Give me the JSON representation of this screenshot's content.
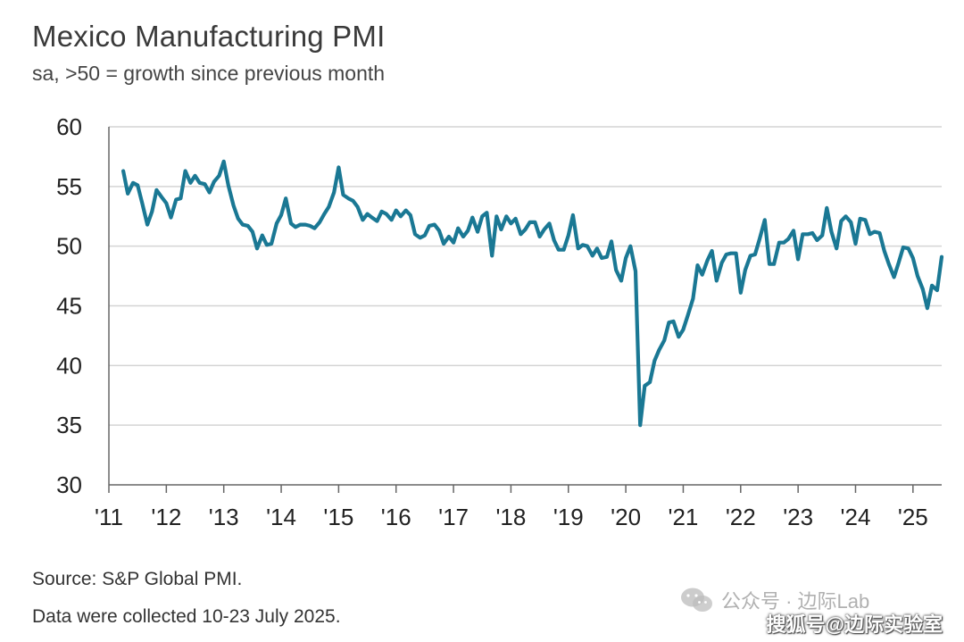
{
  "chart_data": {
    "type": "line",
    "title": "Mexico Manufacturing PMI",
    "subtitle": "sa, >50 = growth since previous month",
    "xlabel": "",
    "ylabel": "",
    "ylim": [
      30,
      60
    ],
    "yticks": [
      60,
      55,
      50,
      45,
      40,
      35,
      30
    ],
    "xticks": [
      "'11",
      "'12",
      "'13",
      "'14",
      "'15",
      "'16",
      "'17",
      "'18",
      "'19",
      "'20",
      "'21",
      "'22",
      "'23",
      "'24",
      "'25"
    ],
    "grid": "horizontal",
    "legend": "none",
    "series_color": "#1a7894",
    "series": [
      {
        "values": [
          [
            2011.25,
            56.3
          ],
          [
            2011.33,
            54.4
          ],
          [
            2011.42,
            55.3
          ],
          [
            2011.5,
            55.1
          ],
          [
            2011.58,
            53.6
          ],
          [
            2011.67,
            51.8
          ],
          [
            2011.75,
            52.9
          ],
          [
            2011.83,
            54.7
          ],
          [
            2011.92,
            54.1
          ],
          [
            2012.0,
            53.6
          ],
          [
            2012.08,
            52.4
          ],
          [
            2012.17,
            53.9
          ],
          [
            2012.25,
            54.0
          ],
          [
            2012.33,
            56.3
          ],
          [
            2012.42,
            55.3
          ],
          [
            2012.5,
            55.9
          ],
          [
            2012.58,
            55.3
          ],
          [
            2012.67,
            55.2
          ],
          [
            2012.75,
            54.5
          ],
          [
            2012.83,
            55.4
          ],
          [
            2012.92,
            55.9
          ],
          [
            2013.0,
            57.1
          ],
          [
            2013.08,
            55.1
          ],
          [
            2013.17,
            53.4
          ],
          [
            2013.25,
            52.3
          ],
          [
            2013.33,
            51.8
          ],
          [
            2013.42,
            51.7
          ],
          [
            2013.5,
            51.2
          ],
          [
            2013.58,
            49.8
          ],
          [
            2013.67,
            50.9
          ],
          [
            2013.75,
            50.1
          ],
          [
            2013.83,
            50.2
          ],
          [
            2013.92,
            51.9
          ],
          [
            2014.0,
            52.6
          ],
          [
            2014.08,
            54.0
          ],
          [
            2014.17,
            51.9
          ],
          [
            2014.25,
            51.6
          ],
          [
            2014.33,
            51.8
          ],
          [
            2014.42,
            51.8
          ],
          [
            2014.5,
            51.7
          ],
          [
            2014.58,
            51.5
          ],
          [
            2014.67,
            52.0
          ],
          [
            2014.75,
            52.7
          ],
          [
            2014.83,
            53.3
          ],
          [
            2014.92,
            54.5
          ],
          [
            2015.0,
            56.6
          ],
          [
            2015.08,
            54.3
          ],
          [
            2015.17,
            54.0
          ],
          [
            2015.25,
            53.8
          ],
          [
            2015.33,
            53.3
          ],
          [
            2015.42,
            52.2
          ],
          [
            2015.5,
            52.7
          ],
          [
            2015.58,
            52.4
          ],
          [
            2015.67,
            52.1
          ],
          [
            2015.75,
            52.9
          ],
          [
            2015.83,
            52.7
          ],
          [
            2015.92,
            52.2
          ],
          [
            2016.0,
            53.0
          ],
          [
            2016.08,
            52.5
          ],
          [
            2016.17,
            53.0
          ],
          [
            2016.25,
            52.6
          ],
          [
            2016.33,
            51.0
          ],
          [
            2016.42,
            50.7
          ],
          [
            2016.5,
            50.9
          ],
          [
            2016.58,
            51.7
          ],
          [
            2016.67,
            51.8
          ],
          [
            2016.75,
            51.3
          ],
          [
            2016.83,
            50.2
          ],
          [
            2016.92,
            50.8
          ],
          [
            2017.0,
            50.3
          ],
          [
            2017.08,
            51.5
          ],
          [
            2017.17,
            50.8
          ],
          [
            2017.25,
            51.3
          ],
          [
            2017.33,
            52.4
          ],
          [
            2017.42,
            51.2
          ],
          [
            2017.5,
            52.5
          ],
          [
            2017.58,
            52.8
          ],
          [
            2017.67,
            49.2
          ],
          [
            2017.75,
            52.5
          ],
          [
            2017.83,
            51.4
          ],
          [
            2017.92,
            52.5
          ],
          [
            2018.0,
            51.9
          ],
          [
            2018.08,
            52.3
          ],
          [
            2018.17,
            51.0
          ],
          [
            2018.25,
            51.4
          ],
          [
            2018.33,
            52.0
          ],
          [
            2018.42,
            52.0
          ],
          [
            2018.5,
            50.8
          ],
          [
            2018.58,
            51.4
          ],
          [
            2018.67,
            51.9
          ],
          [
            2018.75,
            50.5
          ],
          [
            2018.83,
            49.7
          ],
          [
            2018.92,
            49.7
          ],
          [
            2019.0,
            50.9
          ],
          [
            2019.08,
            52.6
          ],
          [
            2019.17,
            49.8
          ],
          [
            2019.25,
            50.1
          ],
          [
            2019.33,
            50.0
          ],
          [
            2019.42,
            49.2
          ],
          [
            2019.5,
            49.8
          ],
          [
            2019.58,
            49.0
          ],
          [
            2019.67,
            49.1
          ],
          [
            2019.75,
            50.4
          ],
          [
            2019.83,
            48.0
          ],
          [
            2019.92,
            47.1
          ],
          [
            2020.0,
            49.0
          ],
          [
            2020.08,
            50.0
          ],
          [
            2020.17,
            47.9
          ],
          [
            2020.25,
            35.0
          ],
          [
            2020.33,
            38.3
          ],
          [
            2020.42,
            38.6
          ],
          [
            2020.5,
            40.4
          ],
          [
            2020.58,
            41.3
          ],
          [
            2020.67,
            42.1
          ],
          [
            2020.75,
            43.6
          ],
          [
            2020.83,
            43.7
          ],
          [
            2020.92,
            42.4
          ],
          [
            2021.0,
            43.0
          ],
          [
            2021.08,
            44.2
          ],
          [
            2021.17,
            45.6
          ],
          [
            2021.25,
            48.4
          ],
          [
            2021.33,
            47.6
          ],
          [
            2021.42,
            48.8
          ],
          [
            2021.5,
            49.6
          ],
          [
            2021.58,
            47.1
          ],
          [
            2021.67,
            48.6
          ],
          [
            2021.75,
            49.3
          ],
          [
            2021.83,
            49.4
          ],
          [
            2021.92,
            49.4
          ],
          [
            2022.0,
            46.1
          ],
          [
            2022.08,
            48.0
          ],
          [
            2022.17,
            49.2
          ],
          [
            2022.25,
            49.3
          ],
          [
            2022.33,
            50.6
          ],
          [
            2022.42,
            52.2
          ],
          [
            2022.5,
            48.5
          ],
          [
            2022.58,
            48.5
          ],
          [
            2022.67,
            50.3
          ],
          [
            2022.75,
            50.3
          ],
          [
            2022.83,
            50.6
          ],
          [
            2022.92,
            51.3
          ],
          [
            2023.0,
            48.9
          ],
          [
            2023.08,
            51.0
          ],
          [
            2023.17,
            51.0
          ],
          [
            2023.25,
            51.1
          ],
          [
            2023.33,
            50.5
          ],
          [
            2023.42,
            50.9
          ],
          [
            2023.5,
            53.2
          ],
          [
            2023.58,
            51.2
          ],
          [
            2023.67,
            49.8
          ],
          [
            2023.75,
            52.1
          ],
          [
            2023.83,
            52.5
          ],
          [
            2023.92,
            52.0
          ],
          [
            2024.0,
            50.2
          ],
          [
            2024.08,
            52.3
          ],
          [
            2024.17,
            52.2
          ],
          [
            2024.25,
            51.0
          ],
          [
            2024.33,
            51.2
          ],
          [
            2024.42,
            51.1
          ],
          [
            2024.5,
            49.6
          ],
          [
            2024.58,
            48.5
          ],
          [
            2024.67,
            47.4
          ],
          [
            2024.75,
            48.6
          ],
          [
            2024.83,
            49.9
          ],
          [
            2024.92,
            49.8
          ],
          [
            2025.0,
            49.0
          ],
          [
            2025.08,
            47.5
          ],
          [
            2025.17,
            46.4
          ],
          [
            2025.25,
            44.8
          ],
          [
            2025.33,
            46.7
          ],
          [
            2025.42,
            46.3
          ],
          [
            2025.5,
            49.1
          ]
        ]
      }
    ]
  },
  "footer": {
    "source": "Source: S&P Global PMI.",
    "collected": "Data were collected 10-23 July 2025."
  },
  "watermark": {
    "text": "公众号 · 边际Lab",
    "icon": "wechat-icon",
    "corner": "搜狐号@边际实验室"
  }
}
